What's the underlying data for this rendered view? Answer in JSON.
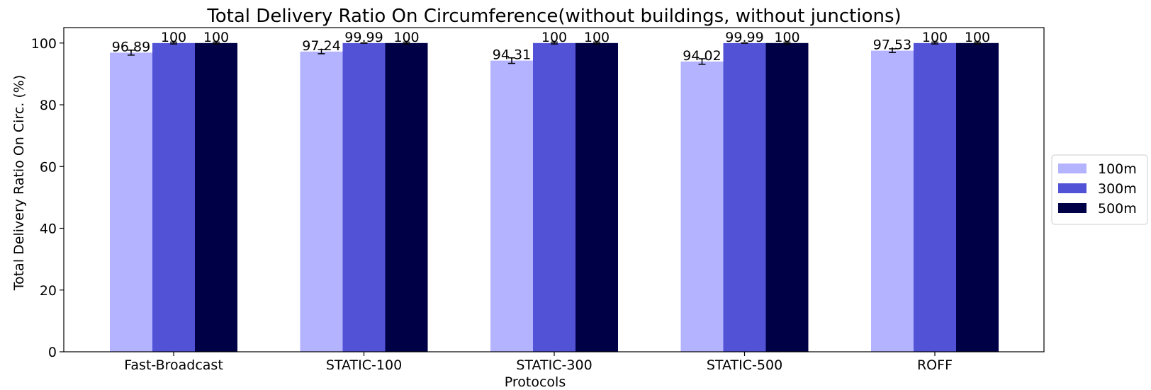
{
  "chart_data": {
    "type": "bar",
    "title": "Total Delivery Ratio On Circumference(without buildings, without junctions)",
    "xlabel": "Protocols",
    "ylabel": "Total Delivery Ratio On Circ. (%)",
    "ylim": [
      0,
      105
    ],
    "yticks": [
      0,
      20,
      40,
      60,
      80,
      100
    ],
    "grid": false,
    "legend_position": "right",
    "categories": [
      "Fast-Broadcast",
      "STATIC-100",
      "STATIC-300",
      "STATIC-500",
      "ROFF"
    ],
    "series": [
      {
        "name": "100m",
        "color": "#b3b3ff",
        "values": [
          96.89,
          97.24,
          94.31,
          94.02,
          97.53
        ],
        "labels": [
          "96.89",
          "97.24",
          "94.31",
          "94.02",
          "97.53"
        ],
        "errors": [
          0.8,
          0.7,
          0.9,
          0.9,
          0.6
        ]
      },
      {
        "name": "300m",
        "color": "#5252d6",
        "values": [
          100,
          99.99,
          100,
          99.99,
          100
        ],
        "labels": [
          "100",
          "99.99",
          "100",
          "99.99",
          "100"
        ],
        "errors": [
          0.3,
          0.05,
          0.3,
          0.05,
          0.3
        ]
      },
      {
        "name": "500m",
        "color": "#000047",
        "values": [
          100,
          100,
          100,
          100,
          100
        ],
        "labels": [
          "100",
          "100",
          "100",
          "100",
          "100"
        ],
        "errors": [
          0.3,
          0.3,
          0.3,
          0.3,
          0.3
        ]
      }
    ]
  }
}
